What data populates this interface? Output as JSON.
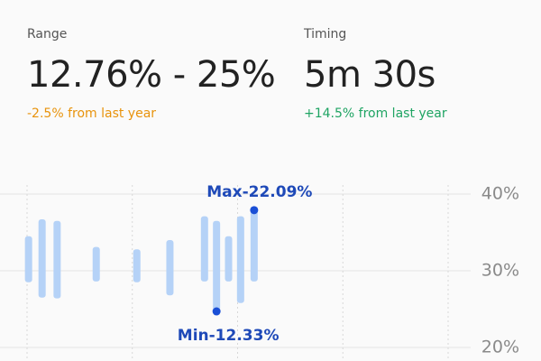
{
  "stats": [
    {
      "label": "Range",
      "value": "12.76% - 25%",
      "change": "-2.5% from last year",
      "change_color": "#e8930c"
    },
    {
      "label": "Timing",
      "value": "5m 30s",
      "change": "+14.5% from last year",
      "change_color": "#1fa463"
    }
  ],
  "chart_data": {
    "type": "range-bar",
    "x": [
      0.1,
      1,
      2,
      4.6,
      7.3,
      9.5,
      11.8,
      12.6,
      13.4,
      14.2,
      15.1
    ],
    "low": [
      28.5,
      26.5,
      26.4,
      28.6,
      28.5,
      26.8,
      28.6,
      24.7,
      28.6,
      25.8,
      28.6
    ],
    "high": [
      34.5,
      36.7,
      36.5,
      33.1,
      32.8,
      34.0,
      37.1,
      36.5,
      34.5,
      37.1,
      37.9
    ],
    "color": "#b5d2f7",
    "point_color": "#1a4fd6",
    "xlim": [
      0,
      28
    ],
    "xticks": [
      0,
      7,
      14,
      21,
      28
    ],
    "ylim": [
      20,
      40
    ],
    "yticks": [
      {
        "value": 20,
        "label": "20%"
      },
      {
        "value": 30,
        "label": "30%"
      },
      {
        "value": 40,
        "label": "40%"
      }
    ],
    "grid": true,
    "annotations": [
      {
        "text": "Max-22.09%",
        "color": "#1e49b8"
      },
      {
        "text": "Min-12.33%",
        "color": "#1e49b8"
      }
    ]
  }
}
